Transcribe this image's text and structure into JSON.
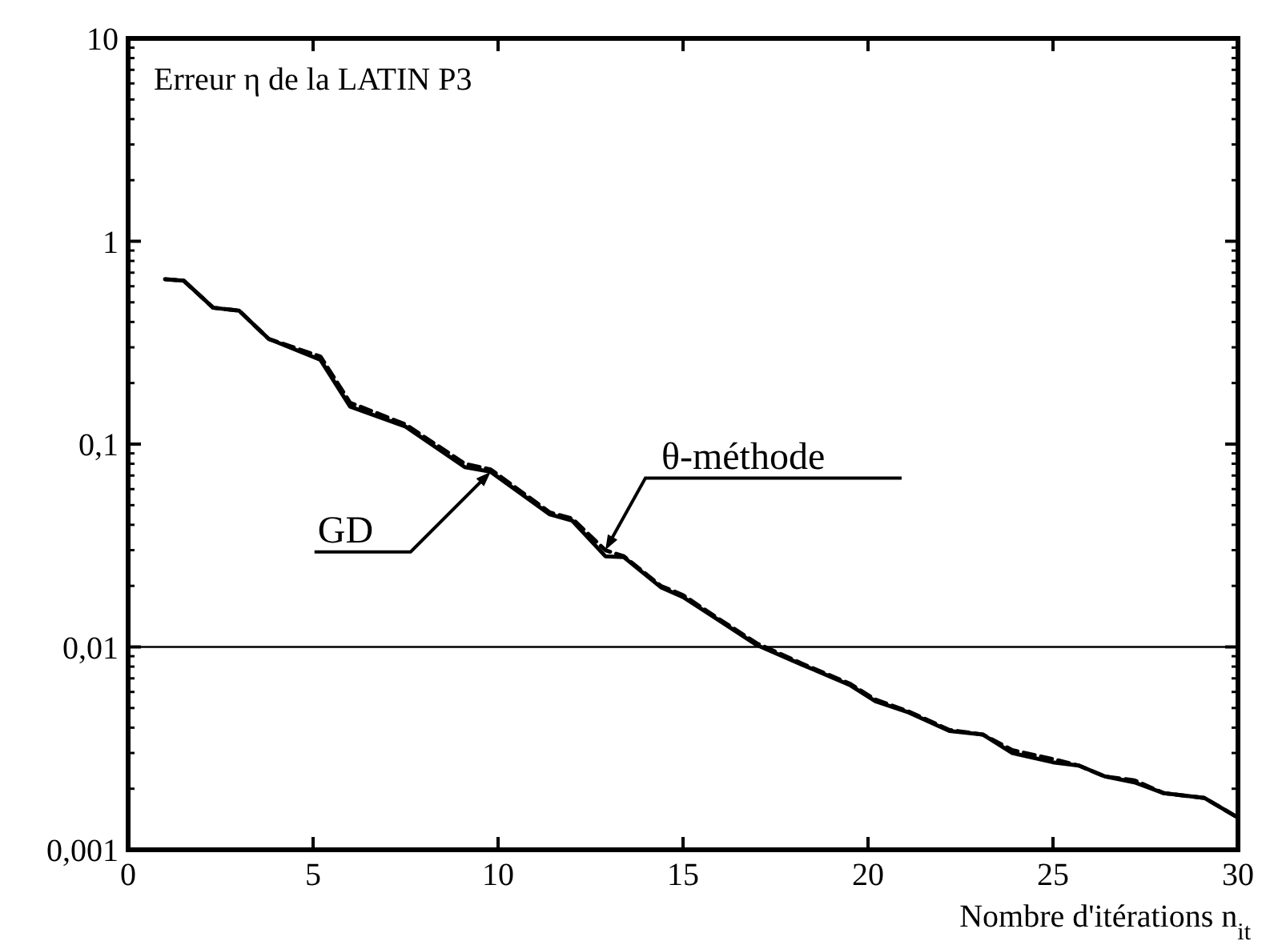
{
  "chart_data": {
    "type": "line",
    "title": "Erreur η de la LATIN P3",
    "xlabel": "Nombre d'itérations n$_{it}$",
    "xlim": [
      0,
      30
    ],
    "xticks": [
      0,
      5,
      10,
      15,
      20,
      25,
      30
    ],
    "ylim": [
      0.001,
      10
    ],
    "yticks": [
      {
        "value": 0.001,
        "label": "0,001"
      },
      {
        "value": 0.01,
        "label": "0,01"
      },
      {
        "value": 0.1,
        "label": "0,1"
      },
      {
        "value": 1,
        "label": "1"
      },
      {
        "value": 10,
        "label": "10"
      }
    ],
    "log": "y",
    "grid": false,
    "ref_lines": [
      {
        "axis": "y",
        "value": 0.01,
        "color": "#000000"
      }
    ],
    "series": [
      {
        "name": "GD",
        "color": "#000000",
        "line_style": "solid",
        "x": [
          1,
          1.5,
          2.3,
          3,
          3.8,
          5.2,
          6,
          7.5,
          9.1,
          9.8,
          11.4,
          12,
          12.9,
          13.4,
          14.4,
          15,
          15.9,
          17,
          18.2,
          19.5,
          20.2,
          21.1,
          22.2,
          23.1,
          23.9,
          25,
          25.7,
          26.4,
          27.2,
          28,
          29.1,
          30
        ],
        "values": [
          0.65,
          0.64,
          0.47,
          0.455,
          0.33,
          0.26,
          0.153,
          0.122,
          0.077,
          0.073,
          0.045,
          0.042,
          0.028,
          0.0277,
          0.0197,
          0.0176,
          0.0138,
          0.0102,
          0.0082,
          0.0065,
          0.0054,
          0.00475,
          0.00385,
          0.0037,
          0.003,
          0.0027,
          0.0026,
          0.0023,
          0.00215,
          0.0019,
          0.0018,
          0.00144
        ]
      },
      {
        "name": "θ-méthode",
        "color": "#000000",
        "line_style": "dashed",
        "x": [
          1,
          1.5,
          2.3,
          3,
          3.8,
          5.2,
          6,
          7.5,
          9.1,
          9.8,
          11.4,
          12,
          12.9,
          13.4,
          14.4,
          15,
          15.9,
          17,
          18.2,
          19.5,
          20.2,
          21.1,
          22.2,
          23.1,
          23.9,
          25,
          25.7,
          26.4,
          27.2,
          28,
          29.1,
          30
        ],
        "values": [
          0.65,
          0.64,
          0.47,
          0.455,
          0.33,
          0.27,
          0.16,
          0.125,
          0.08,
          0.075,
          0.046,
          0.043,
          0.03,
          0.028,
          0.02,
          0.018,
          0.014,
          0.0104,
          0.0083,
          0.0066,
          0.0055,
          0.0048,
          0.0039,
          0.0037,
          0.0031,
          0.0028,
          0.0026,
          0.0023,
          0.0022,
          0.0019,
          0.0018,
          0.00144
        ]
      }
    ]
  }
}
